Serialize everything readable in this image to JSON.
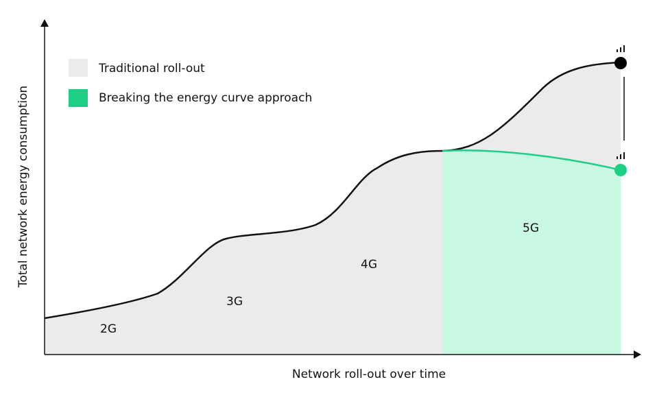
{
  "title_axes": {
    "y_label": "Total network energy consumption",
    "x_label": "Network roll-out over time"
  },
  "legend": [
    {
      "label": "Traditional roll-out"
    },
    {
      "label": "Breaking the energy curve approach"
    }
  ],
  "generations": [
    "2G",
    "3G",
    "4G",
    "5G"
  ]
}
